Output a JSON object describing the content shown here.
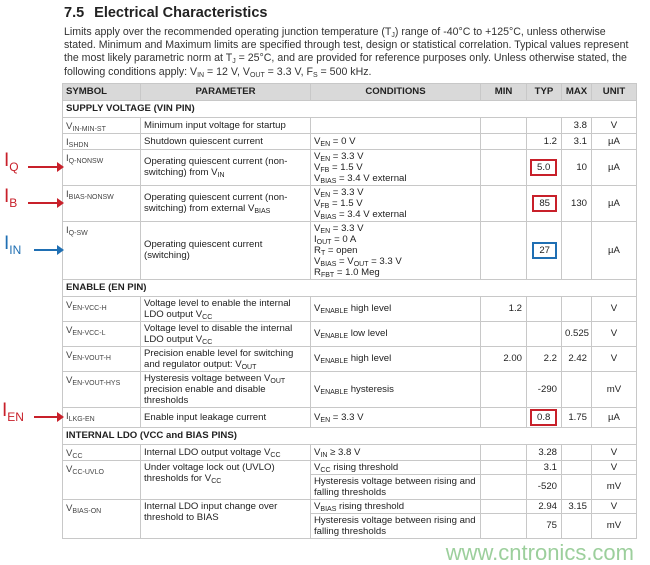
{
  "section": {
    "number": "7.5",
    "title": "Electrical Characteristics"
  },
  "intro": [
    [
      "Limits apply over the recommended operating junction temperature (T",
      ""
    ],
    [
      "J",
      "s"
    ],
    [
      ") range of -40°C to +125°C, unless otherwise stated. Minimum and Maximum limits are specified through test, design or statistical correlation. Typical values represent the most likely parametric norm at T",
      ""
    ],
    [
      "J",
      "s"
    ],
    [
      " = 25°C, and are provided for reference purposes only. Unless otherwise stated, the following conditions apply: V",
      ""
    ],
    [
      "IN",
      "s"
    ],
    [
      " = 12 V, V",
      ""
    ],
    [
      "OUT",
      "s"
    ],
    [
      " = 3.3 V, F",
      ""
    ],
    [
      "S",
      "s"
    ],
    [
      " = 500 kHz.",
      ""
    ]
  ],
  "headers": [
    "SYMBOL",
    "PARAMETER",
    "CONDITIONS",
    "MIN",
    "TYP",
    "MAX",
    "UNIT"
  ],
  "sections": {
    "supply": "SUPPLY VOLTAGE (VIN PIN)",
    "enable": "ENABLE (EN PIN)",
    "ldo": "INTERNAL LDO (VCC and BIAS PINS)"
  },
  "annotations": {
    "red": "#c8202a",
    "blue": "#1f6fb3",
    "iq": [
      [
        "I",
        ""
      ],
      [
        "Q",
        "s"
      ]
    ],
    "ib": [
      [
        "I",
        ""
      ],
      [
        "B",
        "s"
      ]
    ],
    "iin": [
      [
        "I",
        ""
      ],
      [
        "IN",
        "s"
      ]
    ],
    "ien": [
      [
        "I",
        ""
      ],
      [
        "EN",
        "s"
      ]
    ]
  },
  "rows": [
    {
      "sym": [
        [
          "V",
          ""
        ],
        [
          "IN-MIN-ST",
          "s"
        ]
      ],
      "param": [
        [
          "Minimum input voltage for startup",
          ""
        ]
      ],
      "cond": [],
      "min": "",
      "typ": "",
      "max": "3.8",
      "unit": "V"
    },
    {
      "sym": [
        [
          "I",
          ""
        ],
        [
          "SHDN",
          "s"
        ]
      ],
      "param": [
        [
          "Shutdown quiescent current",
          ""
        ]
      ],
      "cond": [
        [
          "V",
          ""
        ],
        [
          "EN",
          "s"
        ],
        [
          " = 0 V",
          ""
        ]
      ],
      "min": "",
      "typ": "1.2",
      "max": "3.1",
      "unit": "µA"
    },
    {
      "sym": [
        [
          "I",
          ""
        ],
        [
          "Q-NONSW",
          "s"
        ]
      ],
      "param": [
        [
          "Operating quiescent current (non-switching) from V",
          ""
        ],
        [
          "IN",
          "s"
        ]
      ],
      "cond": [
        [
          "V",
          ""
        ],
        [
          "EN",
          "s"
        ],
        [
          " = 3.3 V",
          "br"
        ],
        [
          "V",
          ""
        ],
        [
          "FB",
          "s"
        ],
        [
          " = 1.5 V",
          "br"
        ],
        [
          "V",
          ""
        ],
        [
          "BIAS",
          "s"
        ],
        [
          " = 3.4 V external",
          ""
        ]
      ],
      "min": "",
      "typ": "5.0",
      "max": "10",
      "unit": "µA"
    },
    {
      "sym": [
        [
          "I",
          ""
        ],
        [
          "BIAS-NONSW",
          "s"
        ]
      ],
      "param": [
        [
          "Operating quiescent current (non-switching) from external V",
          ""
        ],
        [
          "BIAS",
          "s"
        ]
      ],
      "cond": [
        [
          "V",
          ""
        ],
        [
          "EN",
          "s"
        ],
        [
          " = 3.3 V",
          "br"
        ],
        [
          "V",
          ""
        ],
        [
          "FB",
          "s"
        ],
        [
          " = 1.5 V",
          "br"
        ],
        [
          "V",
          ""
        ],
        [
          "BIAS",
          "s"
        ],
        [
          " = 3.4 V external",
          ""
        ]
      ],
      "min": "",
      "typ": "85",
      "max": "130",
      "unit": "µA"
    },
    {
      "sym": [
        [
          "I",
          ""
        ],
        [
          "Q-SW",
          "s"
        ]
      ],
      "param": [
        [
          "Operating quiescent current (switching)",
          ""
        ]
      ],
      "cond": [
        [
          "V",
          ""
        ],
        [
          "EN",
          "s"
        ],
        [
          " = 3.3 V",
          "br"
        ],
        [
          "I",
          ""
        ],
        [
          "OUT",
          "s"
        ],
        [
          " = 0 A",
          "br"
        ],
        [
          "R",
          ""
        ],
        [
          "T",
          "s"
        ],
        [
          " = open",
          "br"
        ],
        [
          "V",
          ""
        ],
        [
          "BIAS",
          "s"
        ],
        [
          " = V",
          ""
        ],
        [
          "OUT",
          "s"
        ],
        [
          " = 3.3 V",
          "br"
        ],
        [
          "R",
          ""
        ],
        [
          "FBT",
          "s"
        ],
        [
          " = 1.0 Meg",
          ""
        ]
      ],
      "min": "",
      "typ": "27",
      "max": "",
      "unit": "µA"
    },
    {
      "sym": [
        [
          "V",
          ""
        ],
        [
          "EN-VCC-H",
          "s"
        ]
      ],
      "param": [
        [
          "Voltage level to enable the internal LDO output V",
          ""
        ],
        [
          "CC",
          "s"
        ]
      ],
      "cond": [
        [
          "V",
          ""
        ],
        [
          "ENABLE",
          "s"
        ],
        [
          " high level",
          ""
        ]
      ],
      "min": "1.2",
      "typ": "",
      "max": "",
      "unit": "V"
    },
    {
      "sym": [
        [
          "V",
          ""
        ],
        [
          "EN-VCC-L",
          "s"
        ]
      ],
      "param": [
        [
          "Voltage level to disable the internal LDO output V",
          ""
        ],
        [
          "CC",
          "s"
        ]
      ],
      "cond": [
        [
          "V",
          ""
        ],
        [
          "ENABLE",
          "s"
        ],
        [
          " low level",
          ""
        ]
      ],
      "min": "",
      "typ": "",
      "max": "0.525",
      "unit": "V"
    },
    {
      "sym": [
        [
          "V",
          ""
        ],
        [
          "EN-VOUT-H",
          "s"
        ]
      ],
      "param": [
        [
          "Precision enable level for switching and regulator output: V",
          ""
        ],
        [
          "OUT",
          "s"
        ]
      ],
      "cond": [
        [
          "V",
          ""
        ],
        [
          "ENABLE",
          "s"
        ],
        [
          " high level",
          ""
        ]
      ],
      "min": "2.00",
      "typ": "2.2",
      "max": "2.42",
      "unit": "V"
    },
    {
      "sym": [
        [
          "V",
          ""
        ],
        [
          "EN-VOUT-HYS",
          "s"
        ]
      ],
      "param": [
        [
          "Hysteresis voltage between V",
          ""
        ],
        [
          "OUT",
          "s"
        ],
        [
          " precision enable and disable thresholds",
          ""
        ]
      ],
      "cond": [
        [
          "V",
          ""
        ],
        [
          "ENABLE",
          "s"
        ],
        [
          " hysteresis",
          ""
        ]
      ],
      "min": "",
      "typ": "-290",
      "max": "",
      "unit": "mV"
    },
    {
      "sym": [
        [
          "I",
          ""
        ],
        [
          "LKG-EN",
          "s"
        ]
      ],
      "param": [
        [
          "Enable input leakage current",
          ""
        ]
      ],
      "cond": [
        [
          "V",
          ""
        ],
        [
          "EN",
          "s"
        ],
        [
          " = 3.3 V",
          ""
        ]
      ],
      "min": "",
      "typ": "0.8",
      "max": "1.75",
      "unit": "µA"
    },
    {
      "sym": [
        [
          "V",
          ""
        ],
        [
          "CC",
          "s"
        ]
      ],
      "param": [
        [
          "Internal LDO output voltage V",
          ""
        ],
        [
          "CC",
          "s"
        ]
      ],
      "cond": [
        [
          "V",
          ""
        ],
        [
          "IN",
          "s"
        ],
        [
          " ≥ 3.8 V",
          ""
        ]
      ],
      "min": "",
      "typ": "3.28",
      "max": "",
      "unit": "V"
    },
    {
      "sym": [
        [
          "V",
          ""
        ],
        [
          "CC-UVLO",
          "s"
        ]
      ],
      "param": [
        [
          "Under voltage lock out (UVLO) thresholds for V",
          ""
        ],
        [
          "CC",
          "s"
        ]
      ],
      "cond": [
        [
          "V",
          ""
        ],
        [
          "CC",
          "s"
        ],
        [
          " rising threshold",
          ""
        ]
      ],
      "min": "",
      "typ": "3.1",
      "max": "",
      "unit": "V"
    },
    {
      "cond": [
        [
          "Hysteresis voltage between rising and falling thresholds",
          ""
        ]
      ],
      "min": "",
      "typ": "-520",
      "max": "",
      "unit": "mV"
    },
    {
      "sym": [
        [
          "V",
          ""
        ],
        [
          "BIAS-ON",
          "s"
        ]
      ],
      "param": [
        [
          "Internal LDO input change over threshold to BIAS",
          ""
        ]
      ],
      "cond": [
        [
          "V",
          ""
        ],
        [
          "BIAS",
          "s"
        ],
        [
          " rising threshold",
          ""
        ]
      ],
      "min": "",
      "typ": "2.94",
      "max": "3.15",
      "unit": "V"
    },
    {
      "cond": [
        [
          "Hysteresis voltage between rising and falling thresholds",
          ""
        ]
      ],
      "min": "",
      "typ": "75",
      "max": "",
      "unit": "mV"
    }
  ],
  "highlights": {
    "red": [
      "5.0",
      "85",
      "0.8"
    ],
    "blue": [
      "27"
    ]
  },
  "watermark": "www.cntronics.com"
}
